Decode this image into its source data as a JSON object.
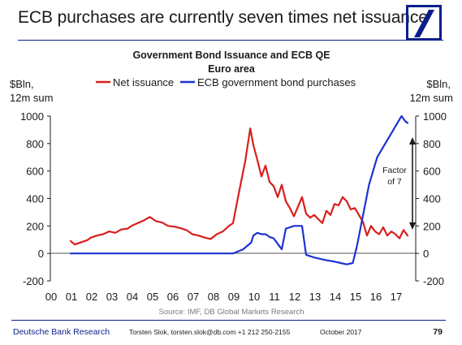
{
  "headline": "ECB purchases are currently seven times net issuance",
  "footer": {
    "brand": "Deutsche Bank Research",
    "author": "Torsten Slok, torsten.slok@db.com +1 212 250-2155",
    "date": "October 2017",
    "page": "79"
  },
  "chart_data": {
    "type": "line",
    "title": "Government Bond Issuance and ECB QE",
    "subtitle": "Euro area",
    "ylabel_left": "$Bln,\n12m sum",
    "ylabel_right": "$Bln,\n12m sum",
    "source": "Source: IMF, DB Global Markets Research",
    "annotation": "Factor\nof 7",
    "ylim": [
      -200,
      1000
    ],
    "yticks": [
      -200,
      0,
      200,
      400,
      600,
      800,
      1000
    ],
    "xlim": [
      2000,
      2018
    ],
    "xticks": [
      {
        "x": 2000,
        "label": "00"
      },
      {
        "x": 2001,
        "label": "01"
      },
      {
        "x": 2002,
        "label": "02"
      },
      {
        "x": 2003,
        "label": "03"
      },
      {
        "x": 2004,
        "label": "04"
      },
      {
        "x": 2005,
        "label": "05"
      },
      {
        "x": 2006,
        "label": "06"
      },
      {
        "x": 2007,
        "label": "07"
      },
      {
        "x": 2008,
        "label": "08"
      },
      {
        "x": 2009,
        "label": "09"
      },
      {
        "x": 2010,
        "label": "10"
      },
      {
        "x": 2011,
        "label": "11"
      },
      {
        "x": 2012,
        "label": "12"
      },
      {
        "x": 2013,
        "label": "13"
      },
      {
        "x": 2014,
        "label": "14"
      },
      {
        "x": 2015,
        "label": "15"
      },
      {
        "x": 2016,
        "label": "16"
      },
      {
        "x": 2017,
        "label": "17"
      }
    ],
    "grid": false,
    "legend_position": "top",
    "series": [
      {
        "name": "Net issuance",
        "color": "#d91e1e",
        "x": [
          2001.0,
          2001.2,
          2001.5,
          2001.8,
          2002.0,
          2002.3,
          2002.6,
          2002.9,
          2003.2,
          2003.5,
          2003.8,
          2004.0,
          2004.3,
          2004.6,
          2004.9,
          2005.2,
          2005.5,
          2005.8,
          2006.1,
          2006.4,
          2006.7,
          2007.0,
          2007.3,
          2007.6,
          2007.9,
          2008.2,
          2008.5,
          2008.8,
          2009.0,
          2009.3,
          2009.6,
          2009.85,
          2010.0,
          2010.2,
          2010.4,
          2010.6,
          2010.8,
          2011.0,
          2011.2,
          2011.4,
          2011.6,
          2011.8,
          2012.0,
          2012.2,
          2012.4,
          2012.6,
          2012.8,
          2013.0,
          2013.2,
          2013.4,
          2013.6,
          2013.8,
          2014.0,
          2014.2,
          2014.4,
          2014.6,
          2014.8,
          2015.0,
          2015.2,
          2015.4,
          2015.6,
          2015.8,
          2016.0,
          2016.2,
          2016.4,
          2016.6,
          2016.8,
          2017.0,
          2017.2,
          2017.4,
          2017.6
        ],
        "y": [
          90,
          65,
          80,
          95,
          115,
          130,
          140,
          160,
          150,
          175,
          180,
          200,
          220,
          240,
          265,
          235,
          225,
          200,
          195,
          185,
          170,
          140,
          130,
          115,
          105,
          140,
          160,
          200,
          220,
          450,
          670,
          910,
          790,
          680,
          560,
          640,
          520,
          490,
          410,
          500,
          380,
          330,
          270,
          340,
          410,
          290,
          260,
          280,
          250,
          220,
          310,
          280,
          360,
          350,
          410,
          380,
          320,
          330,
          280,
          230,
          130,
          200,
          160,
          140,
          190,
          130,
          160,
          140,
          110,
          170,
          130
        ]
      },
      {
        "name": "ECB government bond purchases",
        "color": "#1e32d2",
        "x": [
          2001.0,
          2009.0,
          2009.5,
          2009.9,
          2010.0,
          2010.2,
          2010.4,
          2010.6,
          2010.8,
          2011.0,
          2011.2,
          2011.4,
          2011.6,
          2011.8,
          2012.0,
          2012.2,
          2012.4,
          2012.6,
          2012.8,
          2013.0,
          2013.3,
          2013.6,
          2014.0,
          2014.3,
          2014.6,
          2014.9,
          2015.1,
          2015.3,
          2015.5,
          2015.7,
          2015.9,
          2016.1,
          2016.3,
          2016.5,
          2016.7,
          2016.9,
          2017.1,
          2017.3,
          2017.5,
          2017.6
        ],
        "y": [
          0,
          0,
          30,
          80,
          130,
          150,
          140,
          140,
          120,
          110,
          70,
          30,
          180,
          190,
          200,
          200,
          200,
          -10,
          -20,
          -30,
          -40,
          -50,
          -60,
          -70,
          -80,
          -70,
          50,
          200,
          350,
          500,
          600,
          700,
          750,
          800,
          850,
          900,
          950,
          1000,
          960,
          950
        ]
      }
    ]
  }
}
